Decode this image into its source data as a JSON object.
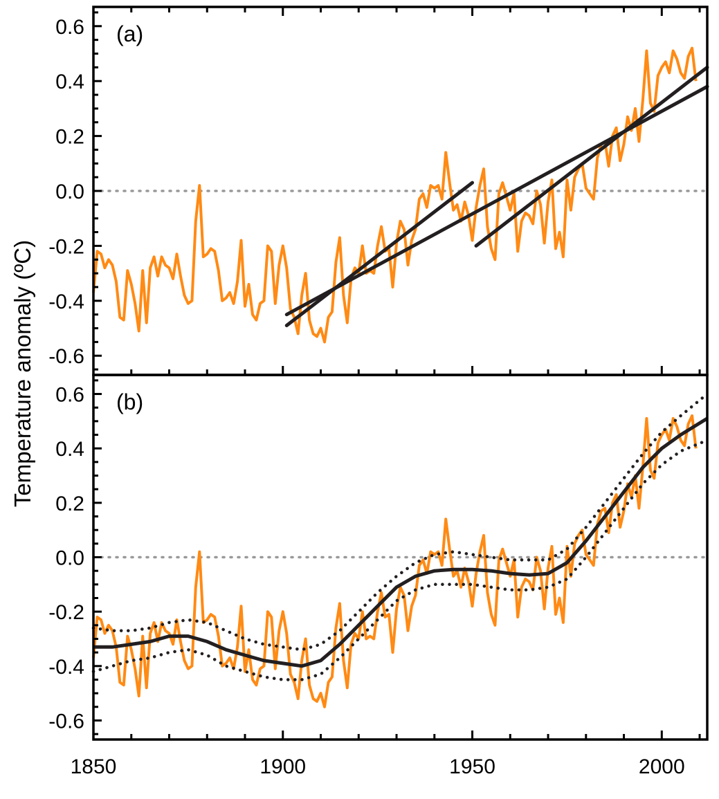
{
  "chart_data": {
    "type": "line",
    "ylabel": "Temperature anomaly (ºC)",
    "xlim": [
      1850,
      2012
    ],
    "ylim": [
      -0.67,
      0.67
    ],
    "x_ticks": [
      1850,
      1900,
      1950,
      2000
    ],
    "y_ticks": [
      -0.6,
      -0.4,
      -0.2,
      0.0,
      0.2,
      0.4,
      0.6
    ],
    "y_tick_labels": [
      "-0.6",
      "-0.4",
      "-0.2",
      "0.0",
      "0.2",
      "0.4",
      "0.6"
    ],
    "colors": {
      "anomaly": "#ff8a14",
      "fit": "#231f20",
      "zero": "#999999"
    },
    "years_start": 1850,
    "anomaly": [
      -0.37,
      -0.22,
      -0.23,
      -0.28,
      -0.25,
      -0.27,
      -0.33,
      -0.46,
      -0.47,
      -0.29,
      -0.34,
      -0.41,
      -0.51,
      -0.29,
      -0.48,
      -0.28,
      -0.24,
      -0.31,
      -0.24,
      -0.27,
      -0.28,
      -0.32,
      -0.23,
      -0.31,
      -0.38,
      -0.41,
      -0.4,
      -0.11,
      0.02,
      -0.24,
      -0.23,
      -0.21,
      -0.22,
      -0.29,
      -0.4,
      -0.39,
      -0.37,
      -0.41,
      -0.33,
      -0.18,
      -0.42,
      -0.34,
      -0.45,
      -0.47,
      -0.41,
      -0.4,
      -0.2,
      -0.22,
      -0.41,
      -0.27,
      -0.2,
      -0.28,
      -0.43,
      -0.46,
      -0.52,
      -0.38,
      -0.3,
      -0.47,
      -0.52,
      -0.53,
      -0.5,
      -0.55,
      -0.46,
      -0.44,
      -0.26,
      -0.17,
      -0.38,
      -0.48,
      -0.32,
      -0.28,
      -0.3,
      -0.2,
      -0.3,
      -0.29,
      -0.3,
      -0.2,
      -0.13,
      -0.22,
      -0.21,
      -0.35,
      -0.19,
      -0.11,
      -0.14,
      -0.27,
      -0.18,
      -0.14,
      -0.03,
      -0.01,
      -0.06,
      0.02,
      0.01,
      0.02,
      -0.03,
      0.14,
      0.03,
      -0.07,
      -0.05,
      -0.11,
      -0.04,
      -0.09,
      -0.18,
      -0.06,
      0.02,
      0.08,
      -0.13,
      -0.21,
      -0.25,
      -0.01,
      0.03,
      -0.02,
      -0.07,
      -0.01,
      -0.22,
      -0.11,
      -0.08,
      -0.09,
      -0.12,
      0.0,
      -0.05,
      -0.19,
      -0.04,
      0.04,
      -0.21,
      -0.15,
      -0.24,
      0.04,
      -0.07,
      0.05,
      0.08,
      0.1,
      0.01,
      -0.01,
      -0.03,
      0.12,
      0.17,
      0.18,
      0.09,
      0.2,
      0.23,
      0.11,
      0.17,
      0.27,
      0.22,
      0.3,
      0.18,
      0.33,
      0.51,
      0.32,
      0.29,
      0.42,
      0.45,
      0.47,
      0.43,
      0.51,
      0.48,
      0.43,
      0.41,
      0.49,
      0.52,
      0.4
    ],
    "panels": [
      {
        "label": "(a)",
        "trend_lines": [
          {
            "x": [
              1901,
              1950
            ],
            "y": [
              -0.49,
              0.03
            ]
          },
          {
            "x": [
              1901,
              2012
            ],
            "y": [
              -0.45,
              0.38
            ]
          },
          {
            "x": [
              1951,
              2012
            ],
            "y": [
              -0.2,
              0.45
            ]
          }
        ]
      },
      {
        "label": "(b)",
        "smooth": {
          "x": [
            1850,
            1855,
            1860,
            1865,
            1870,
            1875,
            1880,
            1885,
            1890,
            1895,
            1900,
            1905,
            1910,
            1915,
            1920,
            1925,
            1930,
            1935,
            1940,
            1945,
            1950,
            1955,
            1960,
            1965,
            1970,
            1975,
            1980,
            1985,
            1990,
            1995,
            2000,
            2005,
            2012
          ],
          "y": [
            -0.33,
            -0.33,
            -0.32,
            -0.31,
            -0.29,
            -0.29,
            -0.31,
            -0.34,
            -0.36,
            -0.38,
            -0.39,
            -0.4,
            -0.38,
            -0.32,
            -0.25,
            -0.18,
            -0.11,
            -0.07,
            -0.05,
            -0.045,
            -0.045,
            -0.05,
            -0.06,
            -0.065,
            -0.06,
            -0.02,
            0.06,
            0.15,
            0.24,
            0.33,
            0.4,
            0.45,
            0.51
          ]
        },
        "upper": {
          "x": [
            1850,
            1855,
            1860,
            1865,
            1870,
            1875,
            1880,
            1885,
            1890,
            1895,
            1900,
            1905,
            1910,
            1915,
            1920,
            1925,
            1930,
            1935,
            1940,
            1945,
            1950,
            1955,
            1960,
            1965,
            1970,
            1975,
            1980,
            1985,
            1990,
            1995,
            2000,
            2005,
            2012
          ],
          "y": [
            -0.26,
            -0.27,
            -0.27,
            -0.26,
            -0.24,
            -0.23,
            -0.24,
            -0.27,
            -0.3,
            -0.32,
            -0.33,
            -0.34,
            -0.32,
            -0.27,
            -0.2,
            -0.13,
            -0.07,
            -0.02,
            0.01,
            0.02,
            0.01,
            0.0,
            -0.01,
            -0.01,
            -0.01,
            0.03,
            0.11,
            0.2,
            0.29,
            0.38,
            0.46,
            0.52,
            0.6
          ]
        },
        "lower": {
          "x": [
            1850,
            1855,
            1860,
            1865,
            1870,
            1875,
            1880,
            1885,
            1890,
            1895,
            1900,
            1905,
            1910,
            1915,
            1920,
            1925,
            1930,
            1935,
            1940,
            1945,
            1950,
            1955,
            1960,
            1965,
            1970,
            1975,
            1980,
            1985,
            1990,
            1995,
            2000,
            2005,
            2012
          ],
          "y": [
            -0.42,
            -0.4,
            -0.38,
            -0.37,
            -0.35,
            -0.34,
            -0.36,
            -0.4,
            -0.42,
            -0.44,
            -0.45,
            -0.45,
            -0.43,
            -0.37,
            -0.3,
            -0.23,
            -0.16,
            -0.12,
            -0.1,
            -0.1,
            -0.1,
            -0.11,
            -0.12,
            -0.12,
            -0.11,
            -0.08,
            0.0,
            0.09,
            0.18,
            0.27,
            0.34,
            0.39,
            0.43
          ]
        }
      }
    ]
  }
}
